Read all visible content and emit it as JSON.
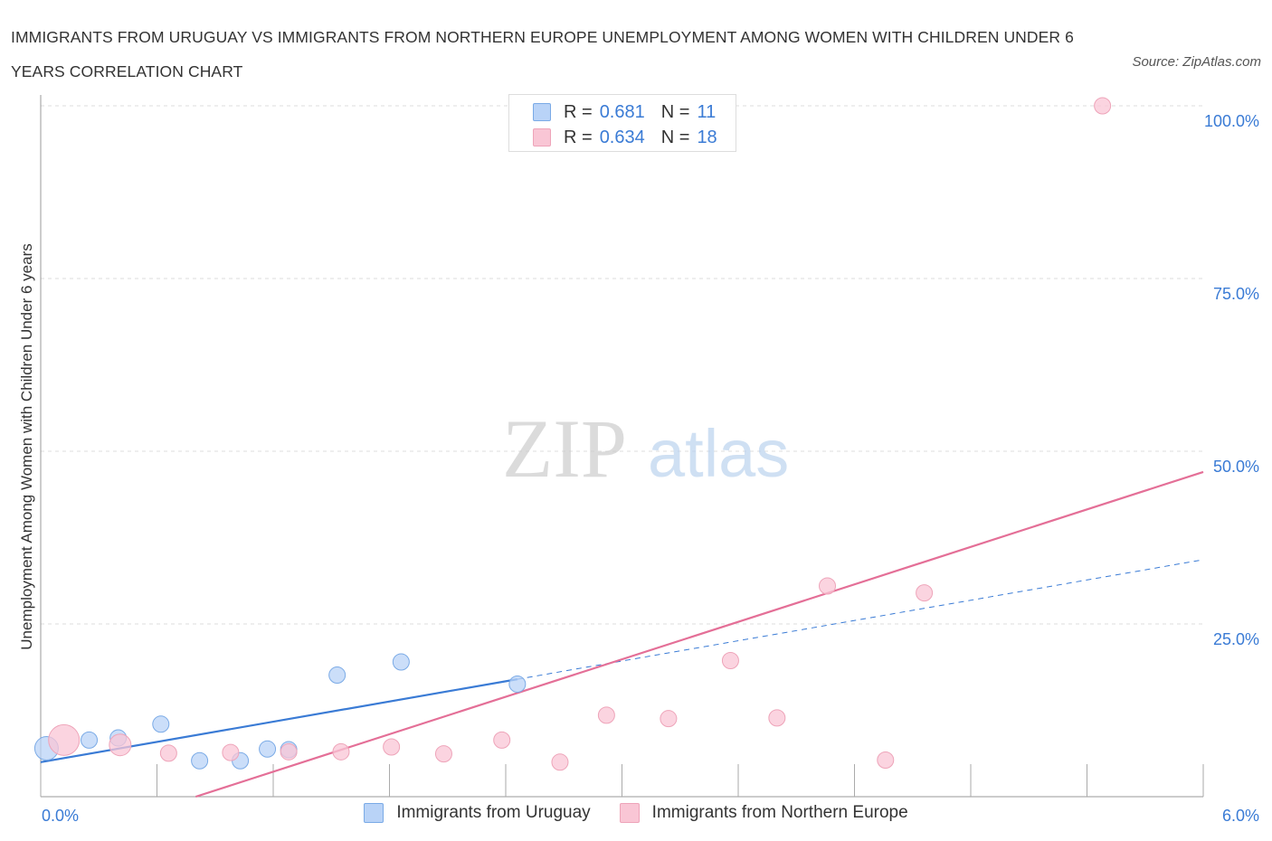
{
  "header": {
    "title": "IMMIGRANTS FROM URUGUAY VS IMMIGRANTS FROM NORTHERN EUROPE UNEMPLOYMENT AMONG WOMEN WITH CHILDREN UNDER 6 YEARS CORRELATION CHART",
    "source": "Source: ZipAtlas.com"
  },
  "legend": {
    "rows": [
      {
        "r_label": "R =",
        "r_value": "0.681",
        "n_label": "N =",
        "n_value": "11"
      },
      {
        "r_label": "R =",
        "r_value": "0.634",
        "n_label": "N =",
        "n_value": "18"
      }
    ]
  },
  "colors": {
    "uruguay_fill": "#b9d3f7",
    "uruguay_stroke": "#7aaae6",
    "uruguay_line": "#3a7bd5",
    "neurope_fill": "#f9c6d5",
    "neurope_stroke": "#eea4b9",
    "neurope_line": "#e46f97",
    "tick_label": "#3a7bd5"
  },
  "watermark": {
    "zip": "ZIP",
    "atlas": "atlas"
  },
  "chart_data": {
    "type": "scatter",
    "title": "IMMIGRANTS FROM URUGUAY VS IMMIGRANTS FROM NORTHERN EUROPE UNEMPLOYMENT AMONG WOMEN WITH CHILDREN UNDER 6 YEARS CORRELATION CHART",
    "xlabel": "",
    "ylabel": "Unemployment Among Women with Children Under 6 years",
    "xlim": [
      0,
      6
    ],
    "ylim": [
      0,
      100
    ],
    "x_tick_labels": [
      "0.0%",
      "6.0%"
    ],
    "y_ticks": [
      25,
      50,
      75,
      100
    ],
    "y_tick_labels": [
      "25.0%",
      "50.0%",
      "75.0%",
      "100.0%"
    ],
    "grid": true,
    "series": [
      {
        "name": "Immigrants from Uruguay",
        "color": "#7aaae6",
        "points": [
          {
            "x": 0.03,
            "y": 7.0
          },
          {
            "x": 0.25,
            "y": 8.2
          },
          {
            "x": 0.4,
            "y": 8.5
          },
          {
            "x": 0.62,
            "y": 10.5
          },
          {
            "x": 0.82,
            "y": 5.2
          },
          {
            "x": 1.03,
            "y": 5.2
          },
          {
            "x": 1.17,
            "y": 6.9
          },
          {
            "x": 1.28,
            "y": 6.8
          },
          {
            "x": 1.53,
            "y": 17.6
          },
          {
            "x": 1.86,
            "y": 19.5
          },
          {
            "x": 2.46,
            "y": 16.3
          }
        ],
        "trend": {
          "x0": 0,
          "y0": 5.0,
          "x1": 2.46,
          "y1": 17.0,
          "dashed_to_x": 6.0,
          "dashed_to_y": 34.3
        }
      },
      {
        "name": "Immigrants from Northern Europe",
        "color": "#eea4b9",
        "points": [
          {
            "x": 0.12,
            "y": 8.2
          },
          {
            "x": 0.41,
            "y": 7.5
          },
          {
            "x": 0.66,
            "y": 6.3
          },
          {
            "x": 0.98,
            "y": 6.4
          },
          {
            "x": 1.28,
            "y": 6.5
          },
          {
            "x": 1.55,
            "y": 6.5
          },
          {
            "x": 1.81,
            "y": 7.2
          },
          {
            "x": 2.08,
            "y": 6.2
          },
          {
            "x": 2.38,
            "y": 8.2
          },
          {
            "x": 2.68,
            "y": 5.0
          },
          {
            "x": 2.92,
            "y": 11.8
          },
          {
            "x": 3.24,
            "y": 11.3
          },
          {
            "x": 3.56,
            "y": 19.7
          },
          {
            "x": 3.8,
            "y": 11.4
          },
          {
            "x": 4.06,
            "y": 30.5
          },
          {
            "x": 4.36,
            "y": 5.3
          },
          {
            "x": 4.56,
            "y": 29.5
          },
          {
            "x": 5.48,
            "y": 100.0
          }
        ],
        "trend": {
          "x0": 0.8,
          "y0": 0.0,
          "x1": 6.0,
          "y1": 47.0
        }
      }
    ],
    "legend_position": "bottom-center"
  }
}
